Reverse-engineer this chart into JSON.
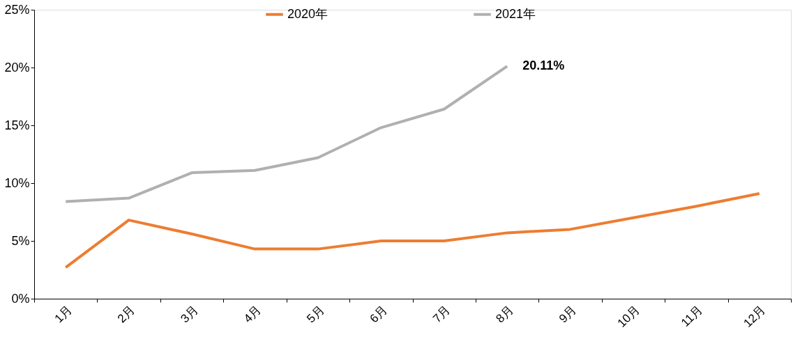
{
  "chart_data": {
    "type": "line",
    "categories": [
      "1月",
      "2月",
      "3月",
      "4月",
      "5月",
      "6月",
      "7月",
      "8月",
      "9月",
      "10月",
      "11月",
      "12月"
    ],
    "series": [
      {
        "name": "2020年",
        "color": "#ed7d31",
        "values": [
          2.7,
          6.8,
          5.6,
          4.3,
          4.3,
          5.0,
          5.0,
          5.7,
          6.0,
          7.0,
          8.0,
          9.1
        ]
      },
      {
        "name": "2021年",
        "color": "#b0b0b0",
        "values": [
          8.4,
          8.7,
          10.9,
          11.1,
          12.2,
          14.8,
          16.4,
          20.11,
          null,
          null,
          null,
          null
        ],
        "value_labels": [
          null,
          null,
          null,
          null,
          null,
          null,
          null,
          "20.11%",
          null,
          null,
          null,
          null
        ]
      }
    ],
    "ylim": [
      0,
      25
    ],
    "yticks": [
      {
        "value": 0,
        "label": "0%"
      },
      {
        "value": 5,
        "label": "5%"
      },
      {
        "value": 10,
        "label": "10%"
      },
      {
        "value": 15,
        "label": "15%"
      },
      {
        "value": 20,
        "label": "20%"
      },
      {
        "value": 25,
        "label": "25%"
      }
    ],
    "grid": false,
    "legend": "top",
    "marker": "none",
    "line_style": "solid"
  }
}
